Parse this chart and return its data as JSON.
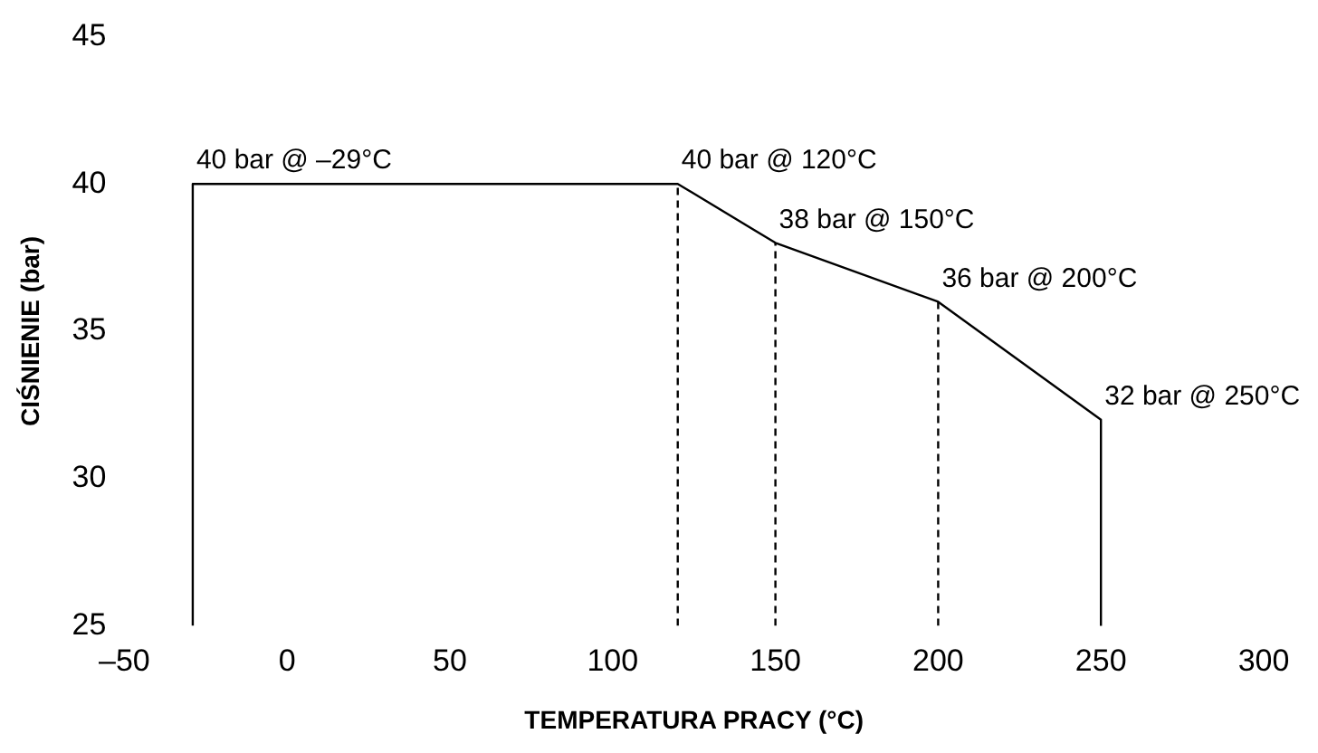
{
  "chart_data": {
    "type": "line",
    "xlabel": "TEMPERATURA PRACY (°C)",
    "ylabel": "CIŚNIENIE (bar)",
    "xlim": [
      -50,
      300
    ],
    "ylim": [
      25,
      45
    ],
    "xticks": [
      {
        "value": -50,
        "label": "–50"
      },
      0,
      50,
      100,
      150,
      200,
      250,
      300
    ],
    "yticks": [
      25,
      30,
      35,
      40,
      45
    ],
    "marker": "none",
    "series": [
      {
        "color": "#000000",
        "line_style": "solid",
        "x": [
          -29,
          -29,
          120,
          150,
          200,
          250,
          250
        ],
        "values": [
          25,
          40,
          40,
          38,
          36,
          32,
          25
        ]
      },
      {
        "color": "#000000",
        "line_style": "dashed",
        "x": [
          120,
          120
        ],
        "values": [
          25,
          40
        ]
      },
      {
        "color": "#000000",
        "line_style": "dashed",
        "x": [
          150,
          150
        ],
        "values": [
          25,
          38
        ]
      },
      {
        "color": "#000000",
        "line_style": "dashed",
        "x": [
          200,
          200
        ],
        "values": [
          25,
          36
        ]
      }
    ],
    "annotations": [
      {
        "text": "40 bar @ –29°C",
        "x": -29,
        "y": 40
      },
      {
        "text": "40 bar @ 120°C",
        "x": 120,
        "y": 40
      },
      {
        "text": "38 bar @ 150°C",
        "x": 150,
        "y": 38
      },
      {
        "text": "36 bar @ 200°C",
        "x": 200,
        "y": 36
      },
      {
        "text": "32 bar @ 250°C",
        "x": 250,
        "y": 32
      }
    ]
  }
}
